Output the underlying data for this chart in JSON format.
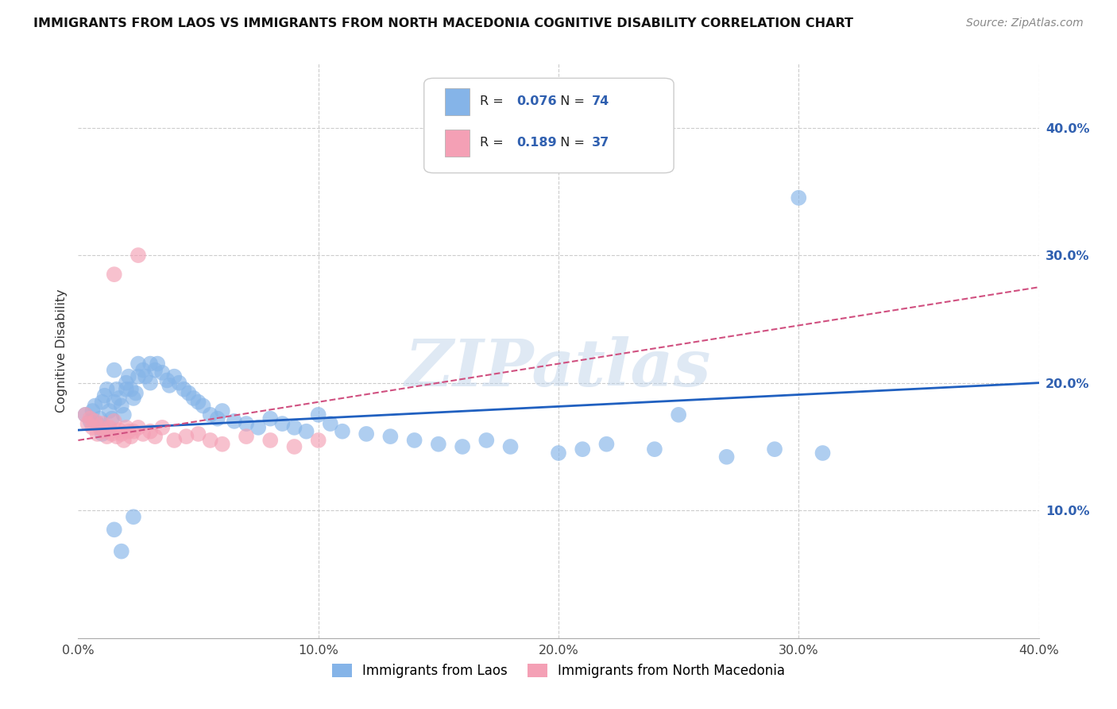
{
  "title": "IMMIGRANTS FROM LAOS VS IMMIGRANTS FROM NORTH MACEDONIA COGNITIVE DISABILITY CORRELATION CHART",
  "source": "Source: ZipAtlas.com",
  "ylabel": "Cognitive Disability",
  "xlim": [
    0.0,
    0.4
  ],
  "ylim": [
    0.0,
    0.45
  ],
  "xticks": [
    0.0,
    0.1,
    0.2,
    0.3,
    0.4
  ],
  "yticks": [
    0.1,
    0.2,
    0.3,
    0.4
  ],
  "ytick_labels": [
    "10.0%",
    "20.0%",
    "30.0%",
    "40.0%"
  ],
  "xtick_labels": [
    "0.0%",
    "10.0%",
    "20.0%",
    "30.0%",
    "40.0%"
  ],
  "legend_label1": "Immigrants from Laos",
  "legend_label2": "Immigrants from North Macedonia",
  "R1": "0.076",
  "N1": "74",
  "R2": "0.189",
  "N2": "37",
  "color1": "#85b4e8",
  "color2": "#f4a0b5",
  "line_color1": "#2060c0",
  "line_color2": "#d05080",
  "watermark": "ZIPatlas",
  "background_color": "#ffffff",
  "grid_color": "#cccccc",
  "laos_line": [
    0.0,
    0.4,
    0.163,
    0.2
  ],
  "mac_line": [
    0.0,
    0.4,
    0.155,
    0.275
  ],
  "laos_x": [
    0.003,
    0.005,
    0.006,
    0.007,
    0.008,
    0.009,
    0.01,
    0.01,
    0.011,
    0.012,
    0.013,
    0.014,
    0.015,
    0.015,
    0.016,
    0.017,
    0.018,
    0.019,
    0.02,
    0.02,
    0.021,
    0.022,
    0.023,
    0.024,
    0.025,
    0.025,
    0.027,
    0.028,
    0.03,
    0.03,
    0.032,
    0.033,
    0.035,
    0.037,
    0.038,
    0.04,
    0.042,
    0.044,
    0.046,
    0.048,
    0.05,
    0.052,
    0.055,
    0.058,
    0.06,
    0.065,
    0.07,
    0.075,
    0.08,
    0.085,
    0.09,
    0.095,
    0.1,
    0.105,
    0.11,
    0.12,
    0.13,
    0.14,
    0.15,
    0.16,
    0.17,
    0.18,
    0.2,
    0.21,
    0.22,
    0.24,
    0.25,
    0.27,
    0.29,
    0.31,
    0.3,
    0.023,
    0.015,
    0.018
  ],
  "laos_y": [
    0.175,
    0.17,
    0.178,
    0.182,
    0.168,
    0.172,
    0.185,
    0.16,
    0.19,
    0.195,
    0.178,
    0.172,
    0.21,
    0.185,
    0.195,
    0.188,
    0.182,
    0.175,
    0.195,
    0.2,
    0.205,
    0.195,
    0.188,
    0.192,
    0.205,
    0.215,
    0.21,
    0.205,
    0.215,
    0.2,
    0.21,
    0.215,
    0.208,
    0.202,
    0.198,
    0.205,
    0.2,
    0.195,
    0.192,
    0.188,
    0.185,
    0.182,
    0.175,
    0.172,
    0.178,
    0.17,
    0.168,
    0.165,
    0.172,
    0.168,
    0.165,
    0.162,
    0.175,
    0.168,
    0.162,
    0.16,
    0.158,
    0.155,
    0.152,
    0.15,
    0.155,
    0.15,
    0.145,
    0.148,
    0.152,
    0.148,
    0.175,
    0.142,
    0.148,
    0.145,
    0.345,
    0.095,
    0.085,
    0.068
  ],
  "mac_x": [
    0.003,
    0.004,
    0.005,
    0.006,
    0.007,
    0.008,
    0.009,
    0.01,
    0.011,
    0.012,
    0.013,
    0.014,
    0.015,
    0.016,
    0.017,
    0.018,
    0.019,
    0.02,
    0.021,
    0.022,
    0.023,
    0.025,
    0.027,
    0.03,
    0.032,
    0.035,
    0.04,
    0.045,
    0.05,
    0.055,
    0.06,
    0.07,
    0.08,
    0.09,
    0.1,
    0.025,
    0.015
  ],
  "mac_y": [
    0.175,
    0.168,
    0.172,
    0.165,
    0.17,
    0.16,
    0.165,
    0.168,
    0.162,
    0.158,
    0.165,
    0.16,
    0.17,
    0.158,
    0.163,
    0.16,
    0.155,
    0.165,
    0.162,
    0.158,
    0.162,
    0.165,
    0.16,
    0.162,
    0.158,
    0.165,
    0.155,
    0.158,
    0.16,
    0.155,
    0.152,
    0.158,
    0.155,
    0.15,
    0.155,
    0.3,
    0.285
  ]
}
